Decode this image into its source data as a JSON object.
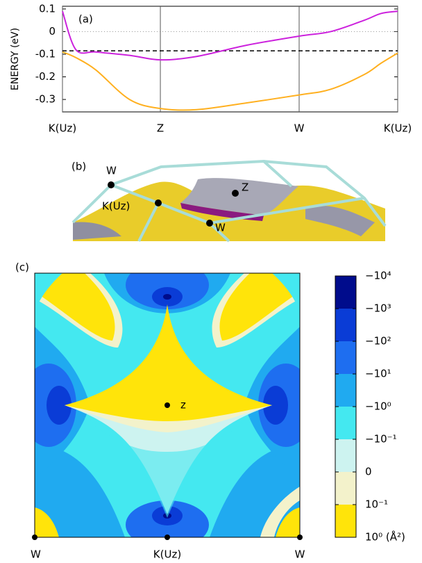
{
  "chart_data": [
    {
      "type": "line",
      "panel_label": "(a)",
      "y_label": "ENERGY (eV)",
      "x": [
        0,
        0.04,
        0.1,
        0.2,
        0.292,
        0.4,
        0.55,
        0.706,
        0.8,
        0.9,
        0.95,
        1
      ],
      "xlim": [
        0,
        1
      ],
      "xticks": [
        {
          "value": 0,
          "label": "K(Uz)"
        },
        {
          "value": 0.292,
          "label": "Z"
        },
        {
          "value": 0.706,
          "label": "W"
        },
        {
          "value": 1,
          "label": "K(Uz)"
        }
      ],
      "ylim": [
        -0.355,
        0.112
      ],
      "yticks": [
        0.1,
        0,
        -0.1,
        -0.2,
        -0.3
      ],
      "reference_lines": [
        {
          "value": 0,
          "style": "dotted",
          "color": "#999999"
        },
        {
          "value": -0.085,
          "style": "dashed",
          "color": "#000000"
        }
      ],
      "series": [
        {
          "color": "#cc22dd",
          "values": [
            0.09,
            -0.08,
            -0.09,
            -0.105,
            -0.125,
            -0.11,
            -0.06,
            -0.02,
            0.0,
            0.05,
            0.08,
            0.09
          ]
        },
        {
          "color": "#ffb020",
          "values": [
            -0.09,
            -0.115,
            -0.17,
            -0.3,
            -0.34,
            -0.345,
            -0.315,
            -0.28,
            -0.255,
            -0.19,
            -0.14,
            -0.095
          ]
        }
      ]
    },
    {
      "type": "contour",
      "panel_label": "(c)",
      "point_labels": [
        "W",
        "K(Uz)",
        "W"
      ],
      "center_label": "z",
      "colorbar": {
        "ticks": [
          {
            "value": -10000,
            "label": "−10⁴"
          },
          {
            "value": -1000,
            "label": "−10³"
          },
          {
            "value": -100,
            "label": "−10²"
          },
          {
            "value": -10,
            "label": "−10¹"
          },
          {
            "value": -1,
            "label": "−10⁰"
          },
          {
            "value": -0.1,
            "label": "−10⁻¹"
          },
          {
            "value": 0,
            "label": "0"
          },
          {
            "value": 0.1,
            "label": "10⁻¹"
          },
          {
            "value": 1,
            "label": "10⁰ (Å²)"
          }
        ],
        "colors": [
          "#000c8c",
          "#0a3cd6",
          "#1e6ef0",
          "#20aaf0",
          "#44e8f0",
          "#cdf3f0",
          "#f3f2cb",
          "#ffe40a"
        ]
      }
    }
  ],
  "panel_b": {
    "label": "(b)",
    "points": [
      "W",
      "Z",
      "K(Uz)",
      "W"
    ]
  }
}
